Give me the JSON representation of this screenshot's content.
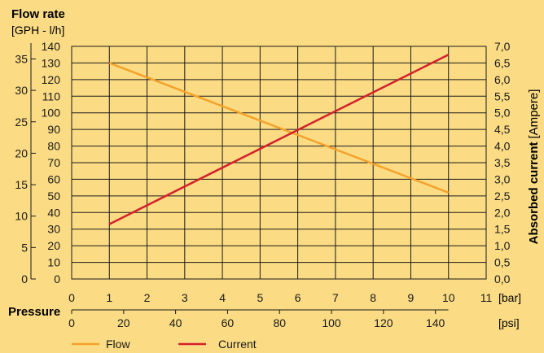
{
  "chart_data": {
    "type": "line",
    "y_left_outer": {
      "title": "Flow rate",
      "unit": "[GPH - l/h]",
      "ticks": [
        "0",
        "5",
        "10",
        "15",
        "20",
        "25",
        "30",
        "35"
      ],
      "range": [
        0,
        37.0
      ]
    },
    "y_left_inner": {
      "ticks": [
        "0",
        "10",
        "20",
        "30",
        "40",
        "50",
        "60",
        "70",
        "80",
        "90",
        "100",
        "110",
        "120",
        "130",
        "140"
      ],
      "range": [
        0,
        140
      ]
    },
    "y_right": {
      "title": "Absorbed current",
      "unit": "[Ampere]",
      "ticks": [
        "0,0",
        "0,5",
        "1,0",
        "1,5",
        "2,0",
        "2,5",
        "3,0",
        "3,5",
        "4,0",
        "4,5",
        "5,0",
        "5,5",
        "6,0",
        "6,5",
        "7,0"
      ],
      "range": [
        0,
        7.0
      ]
    },
    "x_bar": {
      "ticks": [
        "0",
        "1",
        "2",
        "3",
        "4",
        "5",
        "6",
        "7",
        "8",
        "9",
        "10",
        "11"
      ],
      "range": [
        0,
        11
      ],
      "unit": "[bar]"
    },
    "x_psi": {
      "ticks": [
        "0",
        "20",
        "40",
        "60",
        "80",
        "100",
        "120",
        "140"
      ],
      "unit": "[psi]"
    },
    "x_title": "Pressure",
    "grid": true,
    "legend_position": "bottom",
    "series": [
      {
        "name": "Flow",
        "axis": "flow_lh",
        "color": "#f5a12a",
        "x": [
          1,
          10
        ],
        "y": [
          130,
          52
        ]
      },
      {
        "name": "Current",
        "axis": "ampere",
        "color": "#d4202a",
        "x": [
          1,
          10
        ],
        "y": [
          1.65,
          6.75
        ]
      }
    ]
  }
}
